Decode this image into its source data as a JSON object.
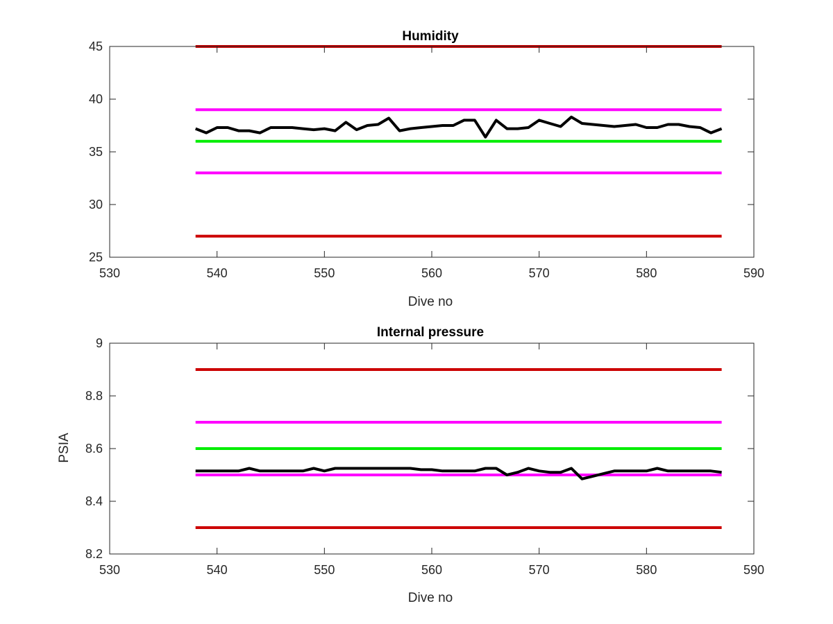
{
  "chart_data": [
    {
      "type": "line",
      "title": "Humidity",
      "xlabel": "Dive no",
      "ylabel": "",
      "xlim": [
        530,
        590
      ],
      "ylim": [
        25,
        45
      ],
      "xticks": [
        530,
        540,
        550,
        560,
        570,
        580,
        590
      ],
      "yticks": [
        25,
        30,
        35,
        40,
        45
      ],
      "grid": false,
      "series": [
        {
          "color": "#cc0000",
          "x": [
            538,
            587
          ],
          "y": [
            45,
            45
          ]
        },
        {
          "color": "#ff00ff",
          "x": [
            538,
            587
          ],
          "y": [
            39,
            39
          ]
        },
        {
          "color": "#00ee00",
          "x": [
            538,
            587
          ],
          "y": [
            36,
            36
          ]
        },
        {
          "color": "#ff00ff",
          "x": [
            538,
            587
          ],
          "y": [
            33,
            33
          ]
        },
        {
          "color": "#cc0000",
          "x": [
            538,
            587
          ],
          "y": [
            27,
            27
          ]
        },
        {
          "color": "#000000",
          "x": [
            538,
            539,
            540,
            541,
            542,
            543,
            544,
            545,
            546,
            547,
            548,
            549,
            550,
            551,
            552,
            553,
            554,
            555,
            556,
            557,
            558,
            559,
            560,
            561,
            562,
            563,
            564,
            565,
            566,
            567,
            568,
            569,
            570,
            571,
            572,
            573,
            574,
            575,
            576,
            577,
            578,
            579,
            580,
            581,
            582,
            583,
            584,
            585,
            586,
            587
          ],
          "y": [
            37.2,
            36.8,
            37.3,
            37.3,
            37.0,
            37.0,
            36.8,
            37.3,
            37.3,
            37.3,
            37.2,
            37.1,
            37.2,
            37.0,
            37.8,
            37.1,
            37.5,
            37.6,
            38.2,
            37.0,
            37.2,
            37.3,
            37.4,
            37.5,
            37.5,
            38.0,
            38.0,
            36.4,
            38.0,
            37.2,
            37.2,
            37.3,
            38.0,
            37.7,
            37.4,
            38.3,
            37.7,
            37.6,
            37.5,
            37.4,
            37.5,
            37.6,
            37.3,
            37.3,
            37.6,
            37.6,
            37.4,
            37.3,
            36.8,
            37.2
          ]
        }
      ]
    },
    {
      "type": "line",
      "title": "Internal pressure",
      "xlabel": "Dive no",
      "ylabel": "PSIA",
      "xlim": [
        530,
        590
      ],
      "ylim": [
        8.2,
        9
      ],
      "xticks": [
        530,
        540,
        550,
        560,
        570,
        580,
        590
      ],
      "yticks": [
        8.2,
        8.4,
        8.6,
        8.8,
        9
      ],
      "grid": false,
      "series": [
        {
          "color": "#cc0000",
          "x": [
            538,
            587
          ],
          "y": [
            8.9,
            8.9
          ]
        },
        {
          "color": "#ff00ff",
          "x": [
            538,
            587
          ],
          "y": [
            8.7,
            8.7
          ]
        },
        {
          "color": "#00ee00",
          "x": [
            538,
            587
          ],
          "y": [
            8.6,
            8.6
          ]
        },
        {
          "color": "#ff00ff",
          "x": [
            538,
            587
          ],
          "y": [
            8.5,
            8.5
          ]
        },
        {
          "color": "#cc0000",
          "x": [
            538,
            587
          ],
          "y": [
            8.3,
            8.3
          ]
        },
        {
          "color": "#000000",
          "x": [
            538,
            539,
            540,
            541,
            542,
            543,
            544,
            545,
            546,
            547,
            548,
            549,
            550,
            551,
            552,
            553,
            554,
            555,
            556,
            557,
            558,
            559,
            560,
            561,
            562,
            563,
            564,
            565,
            566,
            567,
            568,
            569,
            570,
            571,
            572,
            573,
            574,
            575,
            576,
            577,
            578,
            579,
            580,
            581,
            582,
            583,
            584,
            585,
            586,
            587
          ],
          "y": [
            8.515,
            8.515,
            8.515,
            8.515,
            8.515,
            8.525,
            8.515,
            8.515,
            8.515,
            8.515,
            8.515,
            8.525,
            8.515,
            8.525,
            8.525,
            8.525,
            8.525,
            8.525,
            8.525,
            8.525,
            8.525,
            8.52,
            8.52,
            8.515,
            8.515,
            8.515,
            8.515,
            8.525,
            8.525,
            8.5,
            8.51,
            8.525,
            8.515,
            8.51,
            8.51,
            8.525,
            8.485,
            8.495,
            8.505,
            8.515,
            8.515,
            8.515,
            8.515,
            8.525,
            8.515,
            8.515,
            8.515,
            8.515,
            8.515,
            8.51
          ]
        }
      ]
    }
  ]
}
